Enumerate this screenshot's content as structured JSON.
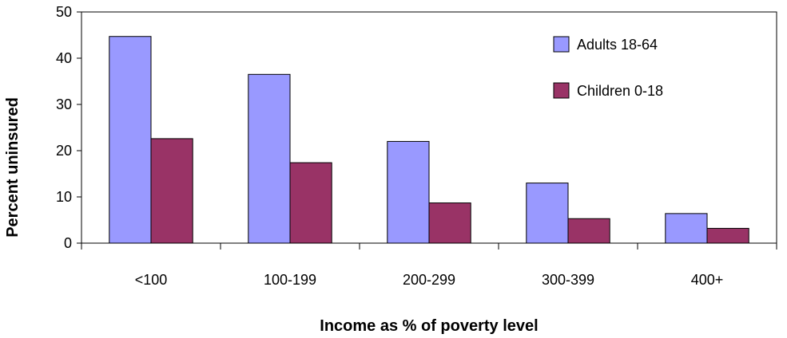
{
  "chart_data": {
    "type": "bar",
    "title": "",
    "xlabel": "Income as % of poverty level",
    "ylabel": "Percent uninsured",
    "categories": [
      "<100",
      "100-199",
      "200-299",
      "300-399",
      "400+"
    ],
    "series": [
      {
        "name": "Adults 18-64",
        "color": "#9999ff",
        "values": [
          44.7,
          36.5,
          22.0,
          13.0,
          6.4
        ]
      },
      {
        "name": "Children 0-18",
        "color": "#993366",
        "values": [
          22.6,
          17.4,
          8.7,
          5.3,
          3.2
        ]
      }
    ],
    "ylim": [
      0,
      50
    ],
    "yticks": [
      "0",
      "10",
      "20",
      "30",
      "40",
      "50"
    ],
    "grid": false,
    "legend_position": "top-right"
  }
}
